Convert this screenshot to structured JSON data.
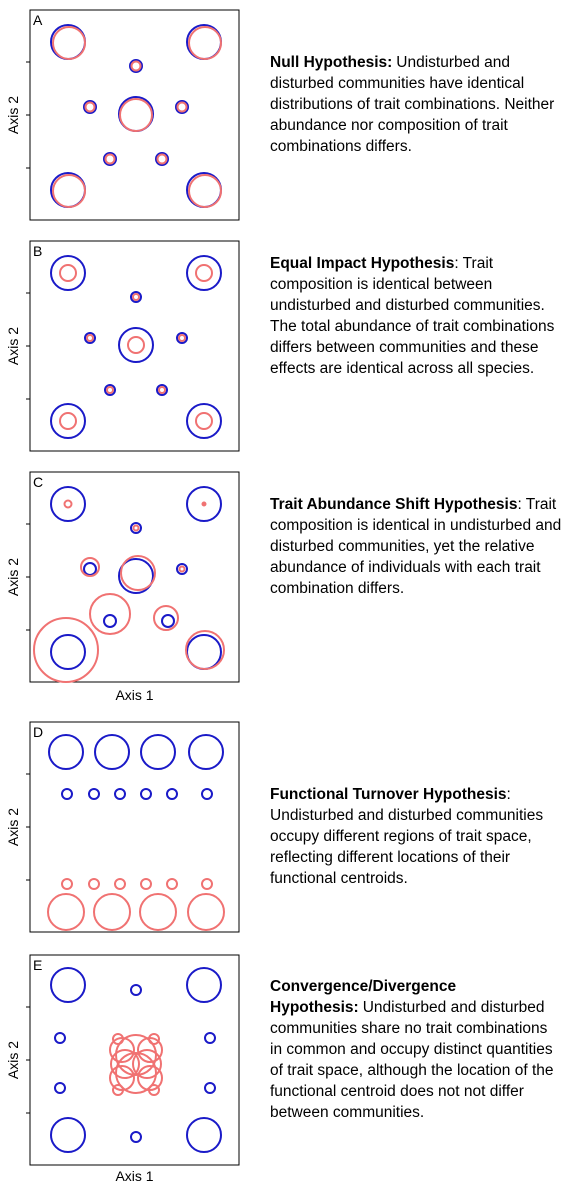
{
  "panels": [
    {
      "letter": "A",
      "y_axis": "Axis 2",
      "title": "Null Hypothesis:",
      "text": "Undisturbed and disturbed communities have identical distributions of trait combinations. Neither abundance nor composition of trait combinations differs."
    },
    {
      "letter": "B",
      "y_axis": "Axis 2",
      "title": "Equal Impact Hypothesis",
      "text": ": Trait composition is identical between undisturbed and disturbed communities. The total abundance of trait combinations differs between communities and these effects are identical across all species."
    },
    {
      "letter": "C",
      "y_axis": "Axis 2",
      "title": "Trait Abundance Shift Hypothesis",
      "text": ": Trait composition is identical in undisturbed and disturbed communities, yet the relative abundance of individuals with each trait combination differs."
    },
    {
      "letter": "D",
      "y_axis": "Axis 2",
      "title": "Functional Turnover Hypothesis",
      "text": ": Undisturbed and disturbed communities occupy different regions of trait space, reflecting different locations of their functional centroids."
    },
    {
      "letter": "E",
      "y_axis": "Axis 2",
      "title": "Convergence/Divergence Hypothesis:",
      "text": "Undisturbed and disturbed communities share no trait combinations in common and occupy distinct quantities of trait space, although the location of the functional centroid does not not differ between communities."
    }
  ],
  "x_axis_labels": [
    "Axis 1",
    "Axis 1"
  ]
}
